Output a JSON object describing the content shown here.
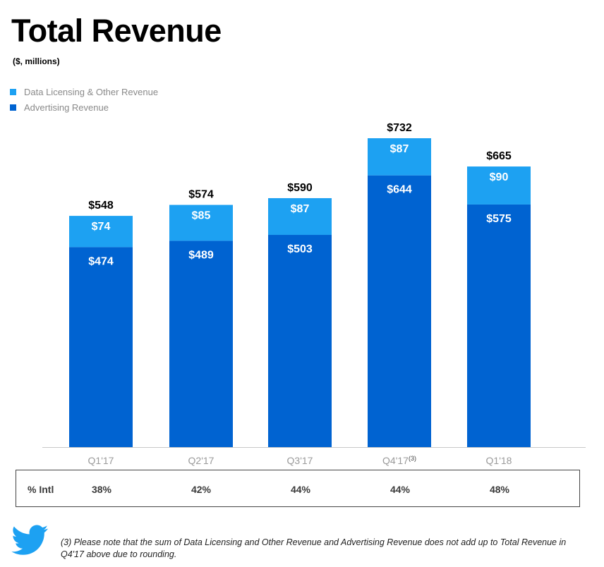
{
  "title": "Total Revenue",
  "subtitle": "($, millions)",
  "legend": [
    {
      "label": "Data Licensing & Other Revenue",
      "color": "#1da1f2"
    },
    {
      "label": "Advertising Revenue",
      "color": "#0063d1"
    }
  ],
  "chart_data": {
    "type": "bar",
    "stacked": true,
    "categories": [
      "Q1'17",
      "Q2'17",
      "Q3'17",
      "Q4'17",
      "Q1'18"
    ],
    "category_footnotes": [
      "",
      "",
      "",
      "(3)",
      ""
    ],
    "series": [
      {
        "name": "Advertising Revenue",
        "values": [
          474,
          489,
          503,
          644,
          575
        ],
        "labels": [
          "$474",
          "$489",
          "$503",
          "$644",
          "$575"
        ],
        "color": "#0063d1"
      },
      {
        "name": "Data Licensing & Other Revenue",
        "values": [
          74,
          85,
          87,
          87,
          90
        ],
        "labels": [
          "$74",
          "$85",
          "$87",
          "$87",
          "$90"
        ],
        "color": "#1da1f2"
      }
    ],
    "totals": [
      548,
      574,
      590,
      732,
      665
    ],
    "total_labels": [
      "$548",
      "$574",
      "$590",
      "$732",
      "$665"
    ],
    "ylim": [
      0,
      732
    ],
    "grid": false,
    "legend_position": "top-left"
  },
  "intl_table": {
    "label": "% Intl",
    "values": [
      "38%",
      "42%",
      "44%",
      "44%",
      "48%"
    ]
  },
  "logo": "twitter-bird-icon",
  "footnote": "(3) Please note that the sum of Data Licensing and Other Revenue and Advertising Revenue does not add up to Total Revenue in Q4'17 above due to rounding."
}
